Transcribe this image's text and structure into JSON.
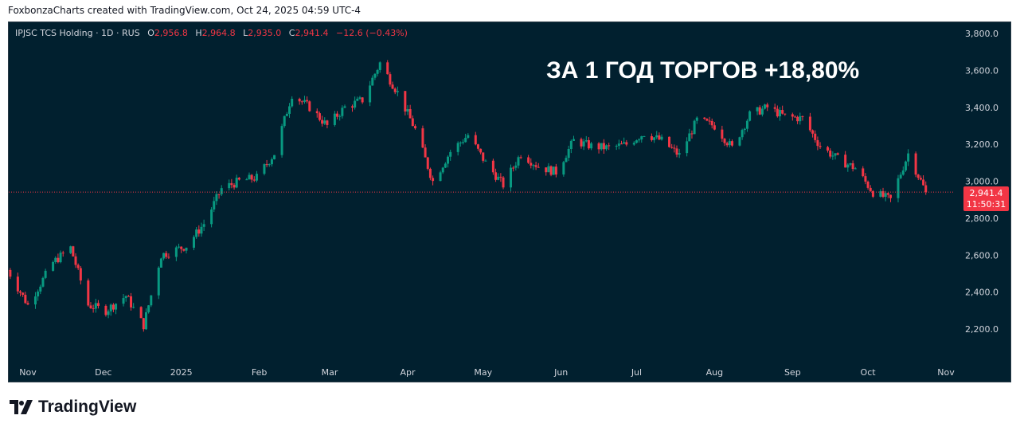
{
  "credit": "FoxbonzaCharts created with TradingView.com, Oct 24, 2025 04:59 UTC-4",
  "legend": {
    "symbol": "IPJSC TCS Holding · 1D · RUS",
    "o_label": "O",
    "o": "2,956.8",
    "h_label": "H",
    "h": "2,964.8",
    "l_label": "L",
    "l": "2,935.0",
    "c_label": "C",
    "c": "2,941.4",
    "change": "−12.6 (−0.43%)"
  },
  "headline": "ЗА 1 ГОД ТОРГОВ +18,80%",
  "price_badge": {
    "price": "2,941.4",
    "timer": "11:50:31"
  },
  "brand": "TradingView",
  "colors": {
    "background": "#01202f",
    "up": "#089981",
    "down": "#f23645",
    "text": "#d1d4dc"
  },
  "chart_data": {
    "type": "candlestick",
    "title": "ЗА 1 ГОД ТОРГОВ +18,80%",
    "xlabel": "",
    "ylabel": "",
    "y_ticks": [
      "2,200.0",
      "2,400.0",
      "2,600.0",
      "2,800.0",
      "3,000.0",
      "3,200.0",
      "3,400.0",
      "3,600.0",
      "3,800.0"
    ],
    "ylim": [
      2100,
      3850
    ],
    "x_ticks": [
      {
        "label": "Nov",
        "date": "2024-11-01"
      },
      {
        "label": "Dec",
        "date": "2024-12-01"
      },
      {
        "label": "2025",
        "date": "2025-01-01"
      },
      {
        "label": "Feb",
        "date": "2025-02-01"
      },
      {
        "label": "Mar",
        "date": "2025-03-01"
      },
      {
        "label": "Apr",
        "date": "2025-04-01"
      },
      {
        "label": "May",
        "date": "2025-05-01"
      },
      {
        "label": "Jun",
        "date": "2025-06-01"
      },
      {
        "label": "Jul",
        "date": "2025-07-01"
      },
      {
        "label": "Aug",
        "date": "2025-08-01"
      },
      {
        "label": "Sep",
        "date": "2025-09-01"
      },
      {
        "label": "Oct",
        "date": "2025-10-01"
      },
      {
        "label": "Nov",
        "date": "2025-11-01"
      }
    ],
    "last_price": 2941.4,
    "series": [
      {
        "name": "IPJSC TCS Holding",
        "points": [
          {
            "date": "2024-10-24",
            "value": 2520
          },
          {
            "date": "2024-11-01",
            "value": 2330
          },
          {
            "date": "2024-11-11",
            "value": 2560
          },
          {
            "date": "2024-11-18",
            "value": 2640
          },
          {
            "date": "2024-11-25",
            "value": 2330
          },
          {
            "date": "2024-12-02",
            "value": 2300
          },
          {
            "date": "2024-12-10",
            "value": 2380
          },
          {
            "date": "2024-12-17",
            "value": 2220
          },
          {
            "date": "2024-12-24",
            "value": 2600
          },
          {
            "date": "2025-01-03",
            "value": 2650
          },
          {
            "date": "2025-01-10",
            "value": 2770
          },
          {
            "date": "2025-01-17",
            "value": 2960
          },
          {
            "date": "2025-01-24",
            "value": 3000
          },
          {
            "date": "2025-01-31",
            "value": 3020
          },
          {
            "date": "2025-02-07",
            "value": 3150
          },
          {
            "date": "2025-02-14",
            "value": 3470
          },
          {
            "date": "2025-02-21",
            "value": 3400
          },
          {
            "date": "2025-02-28",
            "value": 3300
          },
          {
            "date": "2025-03-07",
            "value": 3400
          },
          {
            "date": "2025-03-14",
            "value": 3440
          },
          {
            "date": "2025-03-21",
            "value": 3640
          },
          {
            "date": "2025-03-28",
            "value": 3480
          },
          {
            "date": "2025-04-04",
            "value": 3280
          },
          {
            "date": "2025-04-11",
            "value": 3000
          },
          {
            "date": "2025-04-18",
            "value": 3160
          },
          {
            "date": "2025-04-25",
            "value": 3250
          },
          {
            "date": "2025-05-02",
            "value": 3100
          },
          {
            "date": "2025-05-09",
            "value": 2980
          },
          {
            "date": "2025-05-16",
            "value": 3150
          },
          {
            "date": "2025-05-23",
            "value": 3080
          },
          {
            "date": "2025-05-30",
            "value": 3050
          },
          {
            "date": "2025-06-06",
            "value": 3220
          },
          {
            "date": "2025-06-13",
            "value": 3190
          },
          {
            "date": "2025-06-20",
            "value": 3180
          },
          {
            "date": "2025-06-27",
            "value": 3200
          },
          {
            "date": "2025-07-04",
            "value": 3260
          },
          {
            "date": "2025-07-11",
            "value": 3220
          },
          {
            "date": "2025-07-18",
            "value": 3140
          },
          {
            "date": "2025-07-25",
            "value": 3330
          },
          {
            "date": "2025-08-01",
            "value": 3300
          },
          {
            "date": "2025-08-08",
            "value": 3180
          },
          {
            "date": "2025-08-15",
            "value": 3360
          },
          {
            "date": "2025-08-22",
            "value": 3400
          },
          {
            "date": "2025-08-29",
            "value": 3350
          },
          {
            "date": "2025-09-05",
            "value": 3340
          },
          {
            "date": "2025-09-12",
            "value": 3190
          },
          {
            "date": "2025-09-19",
            "value": 3120
          },
          {
            "date": "2025-09-26",
            "value": 3070
          },
          {
            "date": "2025-10-03",
            "value": 2940
          },
          {
            "date": "2025-10-10",
            "value": 2900
          },
          {
            "date": "2025-10-17",
            "value": 3150
          },
          {
            "date": "2025-10-24",
            "value": 2941.4
          }
        ]
      }
    ]
  }
}
